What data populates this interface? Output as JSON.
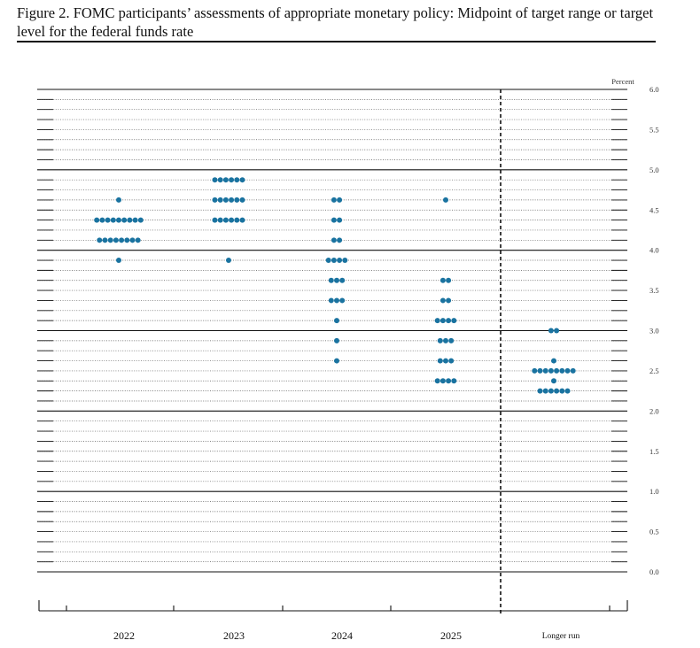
{
  "title": "Figure 2. FOMC participants’ assessments of appropriate monetary policy: Midpoint of target range or target level for the federal funds rate",
  "colors": {
    "dot": "#1a73a0",
    "line": "#111111"
  },
  "chart_data": {
    "type": "scatter",
    "subtype": "dot plot",
    "title": "Figure 2. FOMC participants’ assessments of appropriate monetary policy: Midpoint of target range or target level for the federal funds rate",
    "ylabel": "Percent",
    "ylim": [
      0,
      6
    ],
    "y_ticks": [
      "0.0",
      "0.5",
      "1.0",
      "1.5",
      "2.0",
      "2.5",
      "3.0",
      "3.5",
      "4.0",
      "4.5",
      "5.0",
      "5.5",
      "6.0"
    ],
    "categories": [
      "2022",
      "2023",
      "2024",
      "2025",
      "Longer run"
    ],
    "grid": "solid lines at whole percent, dotted lines at 0.125 steps",
    "separator": "dashed vertical line between 2025 and Longer run",
    "dots": [
      {
        "category": "2022",
        "values": [
          {
            "y": 4.625,
            "count": 1
          },
          {
            "y": 4.375,
            "count": 9
          },
          {
            "y": 4.125,
            "count": 8
          },
          {
            "y": 3.875,
            "count": 1
          }
        ]
      },
      {
        "category": "2023",
        "values": [
          {
            "y": 4.875,
            "count": 6
          },
          {
            "y": 4.625,
            "count": 6
          },
          {
            "y": 4.375,
            "count": 6
          },
          {
            "y": 3.875,
            "count": 1
          }
        ]
      },
      {
        "category": "2024",
        "values": [
          {
            "y": 4.625,
            "count": 2
          },
          {
            "y": 4.375,
            "count": 2
          },
          {
            "y": 4.125,
            "count": 2
          },
          {
            "y": 3.875,
            "count": 4
          },
          {
            "y": 3.625,
            "count": 3
          },
          {
            "y": 3.375,
            "count": 3
          },
          {
            "y": 3.125,
            "count": 1
          },
          {
            "y": 2.875,
            "count": 1
          },
          {
            "y": 2.625,
            "count": 1
          }
        ]
      },
      {
        "category": "2025",
        "values": [
          {
            "y": 4.625,
            "count": 1
          },
          {
            "y": 3.625,
            "count": 2
          },
          {
            "y": 3.375,
            "count": 2
          },
          {
            "y": 3.125,
            "count": 4
          },
          {
            "y": 2.875,
            "count": 3
          },
          {
            "y": 2.625,
            "count": 3
          },
          {
            "y": 2.375,
            "count": 4
          }
        ]
      },
      {
        "category": "Longer run",
        "values": [
          {
            "y": 3.0,
            "count": 2
          },
          {
            "y": 2.625,
            "count": 1
          },
          {
            "y": 2.5,
            "count": 8
          },
          {
            "y": 2.375,
            "count": 1
          },
          {
            "y": 2.25,
            "count": 6
          }
        ]
      }
    ]
  }
}
